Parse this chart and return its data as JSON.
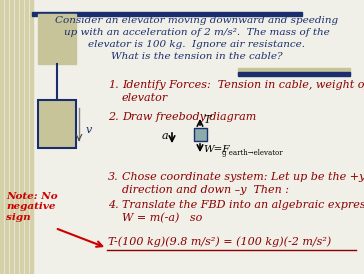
{
  "bg_color": "#f0efe8",
  "title_lines": [
    "Consider an elevator moving downward and speeding",
    "up with an acceleration of 2 m/s².  The mass of the",
    "elevator is 100 kg.  Ignore air resistance.",
    "What is the tension in the cable?"
  ],
  "step1": "Identify Forces:  Tension in cable, weight of the\nelevator",
  "step2": "Draw freebody diagram",
  "step3": "Chose coordinate system: Let up be the +y\ndirection and down –y  Then :",
  "step4": "Translate the FBD into an algebraic expression.  T-\nW = m(-a)   so",
  "final_eq": "T-(100 kg)(9.8 m/s²) = (100 kg)(-2 m/s²)",
  "note": "Note: No\nnegative\nsign",
  "dark_blue": "#1a2e6e",
  "text_color": "#8B0000",
  "header_color": "#1a2e6e",
  "stripe_color": "#d4d0a8",
  "box_color": "#c8c49a",
  "note_color": "#cc0000",
  "fbd_box_color": "#8aacac"
}
